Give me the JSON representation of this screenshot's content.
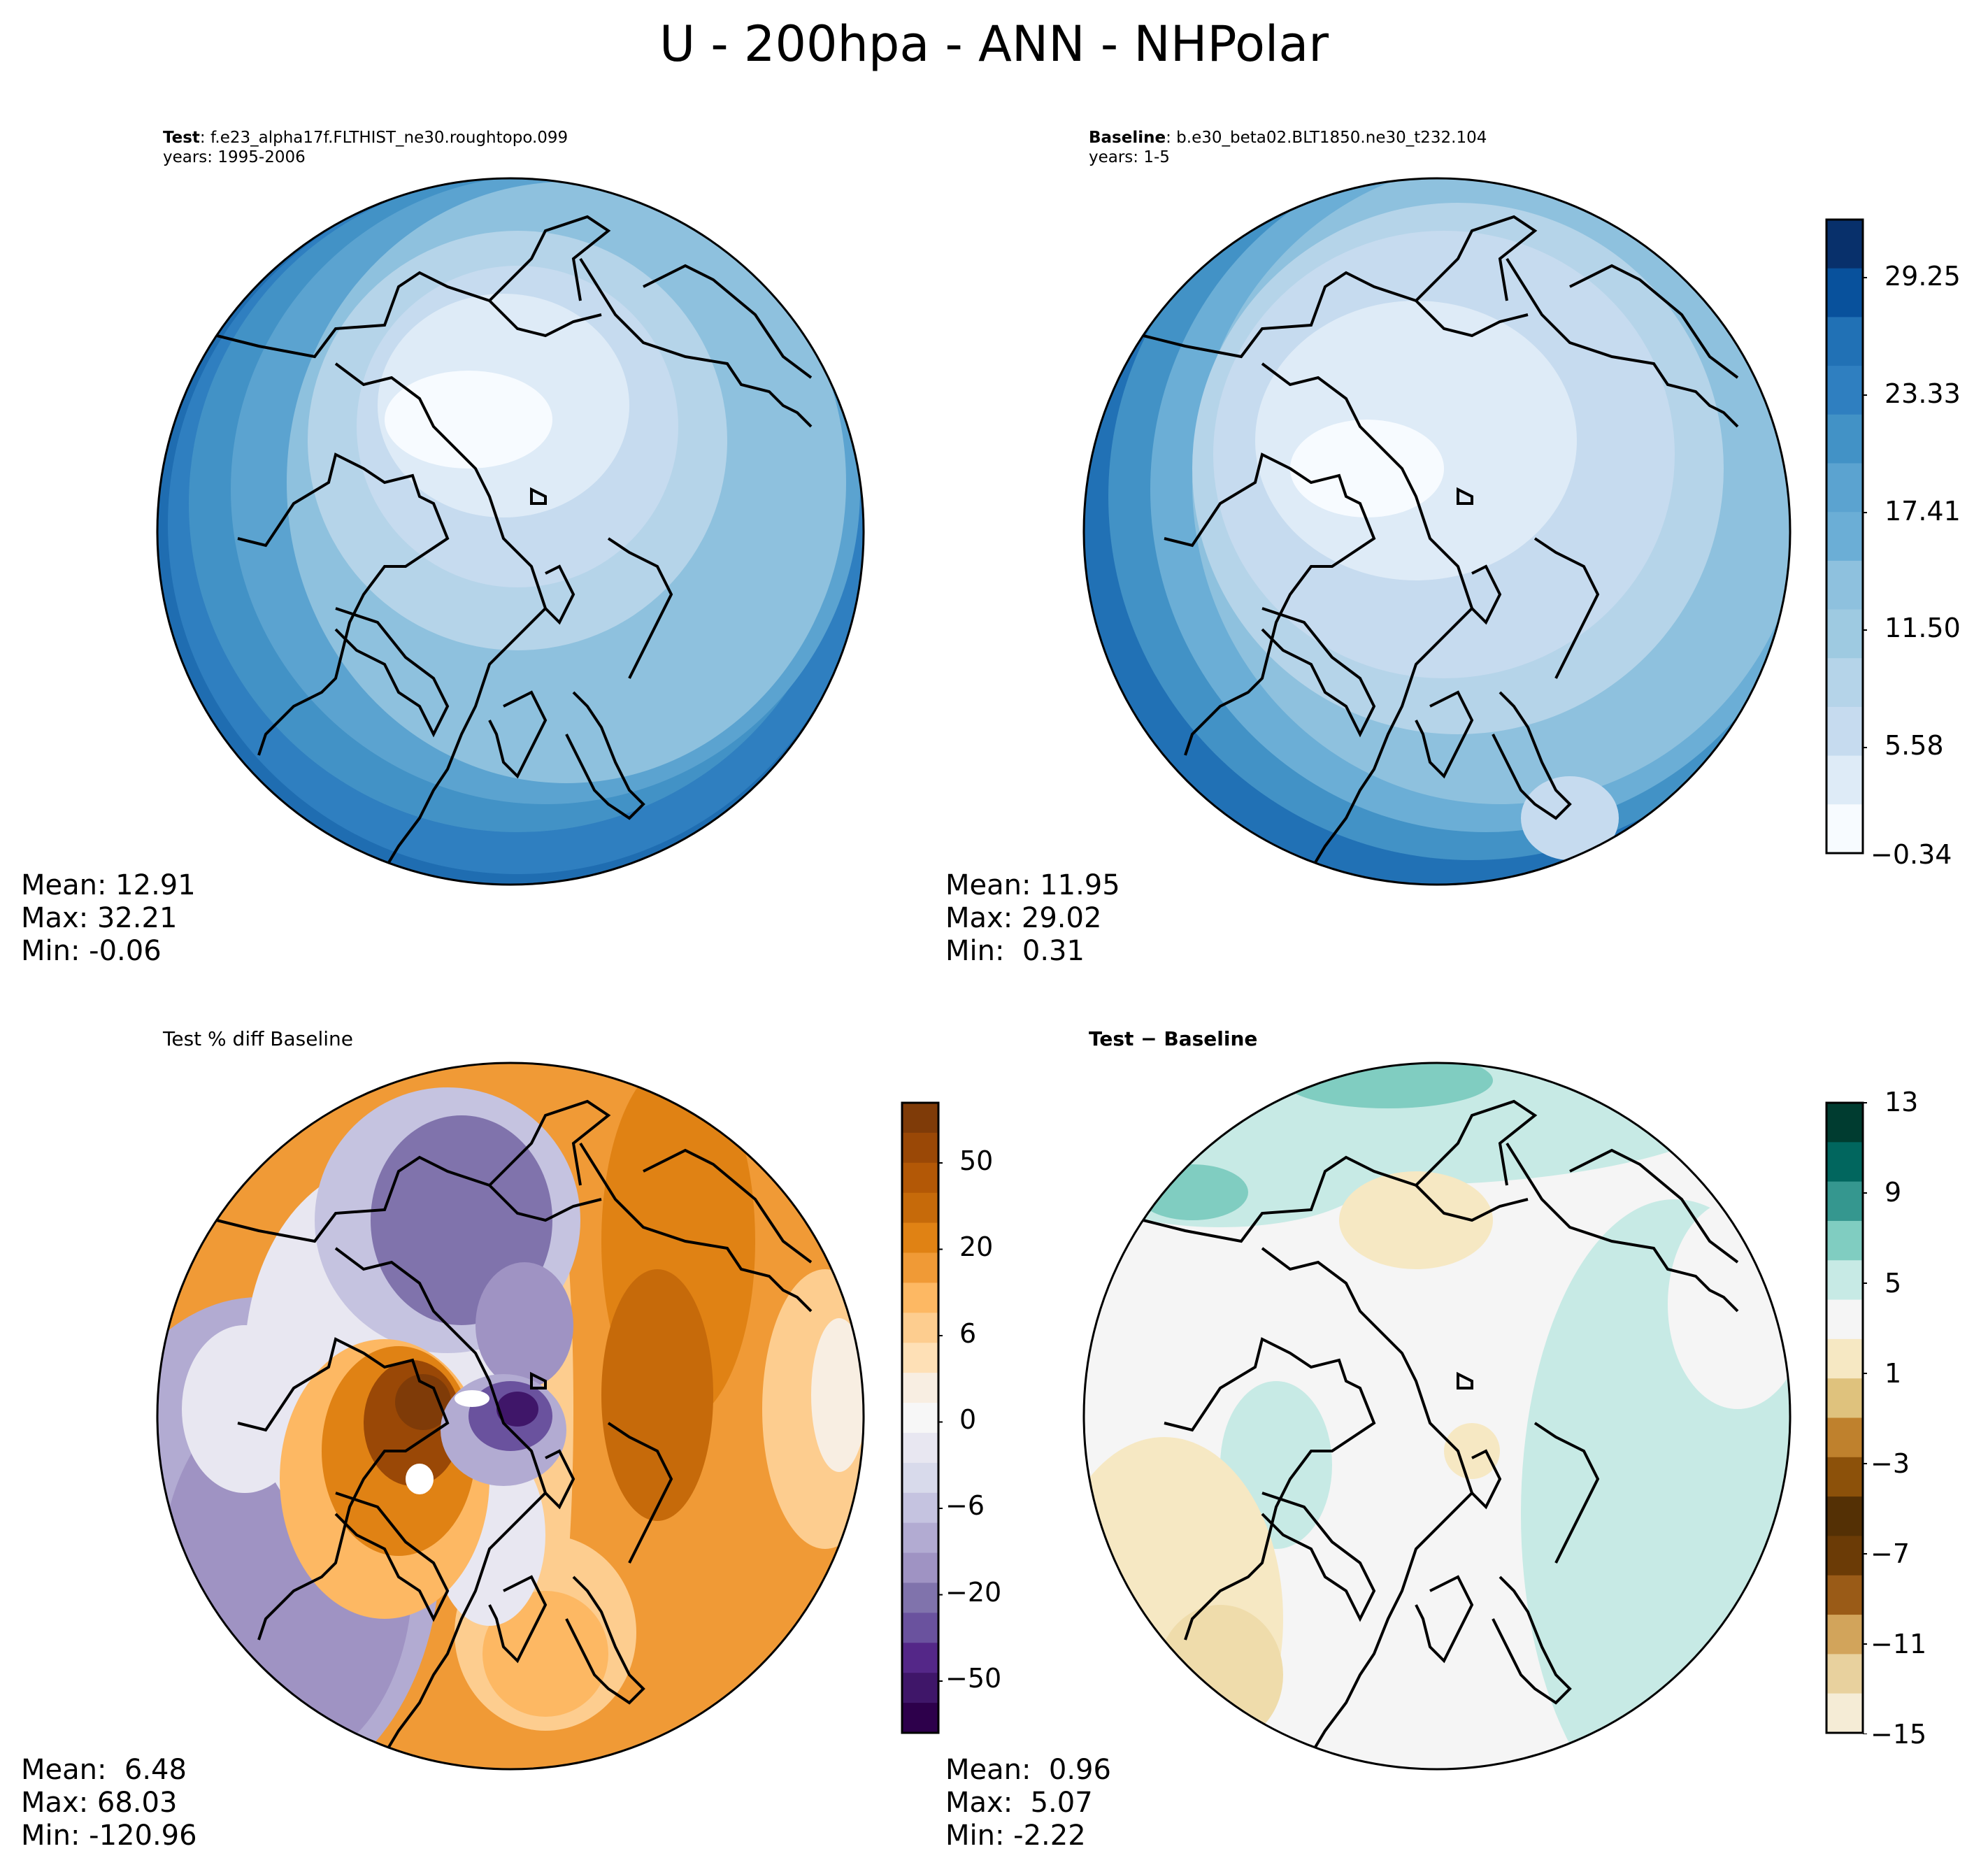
{
  "title": "U - 200hpa - ANN - NHPolar",
  "panels": {
    "test": {
      "label_bold": "Test",
      "label_rest": ": f.e23_alpha17f.FLTHIST_ne30.roughtopo.099",
      "years": "years: 1995-2006",
      "stats": [
        "Mean: 12.91",
        "Max: 32.21",
        "Min: -0.06"
      ]
    },
    "baseline": {
      "label_bold": "Baseline",
      "label_rest": ": b.e30_beta02.BLT1850.ne30_t232.104",
      "years": "years: 1-5",
      "stats": [
        "Mean: 11.95",
        "Max: 29.02",
        "Min:  0.31"
      ]
    },
    "pctdiff": {
      "title": "Test % diff Baseline",
      "stats": [
        "Mean:  6.48",
        "Max: 68.03",
        "Min: -120.96"
      ]
    },
    "diff": {
      "title": "Test − Baseline",
      "stats": [
        "Mean:  0.96",
        "Max:  5.07",
        "Min: -2.22"
      ]
    }
  },
  "colorbars": {
    "blues": {
      "ticks": [
        "29.25",
        "23.33",
        "17.41",
        "11.50",
        "5.58",
        "−0.34"
      ],
      "colors": [
        "#08306b",
        "#08519c",
        "#2171b5",
        "#2f7fc0",
        "#4292c6",
        "#5ba3d0",
        "#6baed6",
        "#8ec1de",
        "#9ecae1",
        "#b5d4e9",
        "#c6dbef",
        "#deebf7",
        "#f7fbff"
      ]
    },
    "puor": {
      "ticks": [
        "50",
        "20",
        "6",
        "0",
        "−6",
        "−20",
        "−50"
      ],
      "colors": [
        "#7f3b08",
        "#9a4806",
        "#b35806",
        "#c66a0a",
        "#e08214",
        "#f09a36",
        "#fdb863",
        "#fdcd8f",
        "#fee0b6",
        "#f8eee2",
        "#f7f7f7",
        "#e8e7f1",
        "#d8daeb",
        "#c5c3e0",
        "#b2abd2",
        "#9f93c3",
        "#8073ac",
        "#6a529e",
        "#542788",
        "#3f1669",
        "#2d004b"
      ]
    },
    "brbg": {
      "ticks": [
        "13",
        "9",
        "5",
        "1",
        "−3",
        "−7",
        "−11",
        "−15"
      ],
      "colors": [
        "#003c30",
        "#01665e",
        "#35978f",
        "#80cdc1",
        "#c7eae5",
        "#f5f5f5",
        "#f6e8c3",
        "#dfc27d",
        "#bf812d",
        "#8c510a",
        "#543005",
        "#6b3b06",
        "#9a5b17",
        "#d2a45b",
        "#e8d19e",
        "#f5ecd6"
      ]
    }
  }
}
